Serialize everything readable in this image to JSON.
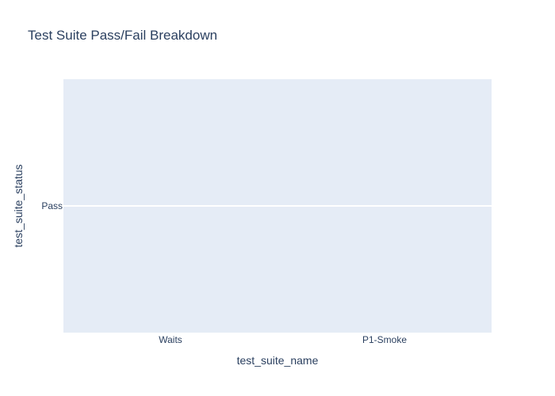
{
  "chart_data": {
    "type": "bar",
    "title": "Test Suite Pass/Fail Breakdown",
    "xlabel": "test_suite_name",
    "ylabel": "test_suite_status",
    "categories": [
      "Waits",
      "P1-Smoke"
    ],
    "y_categories": [
      "Pass"
    ],
    "grid": true,
    "colors": {
      "plot_background": "#e5ecf6",
      "gridline": "#ffffff",
      "text": "#2a3f5f"
    }
  }
}
